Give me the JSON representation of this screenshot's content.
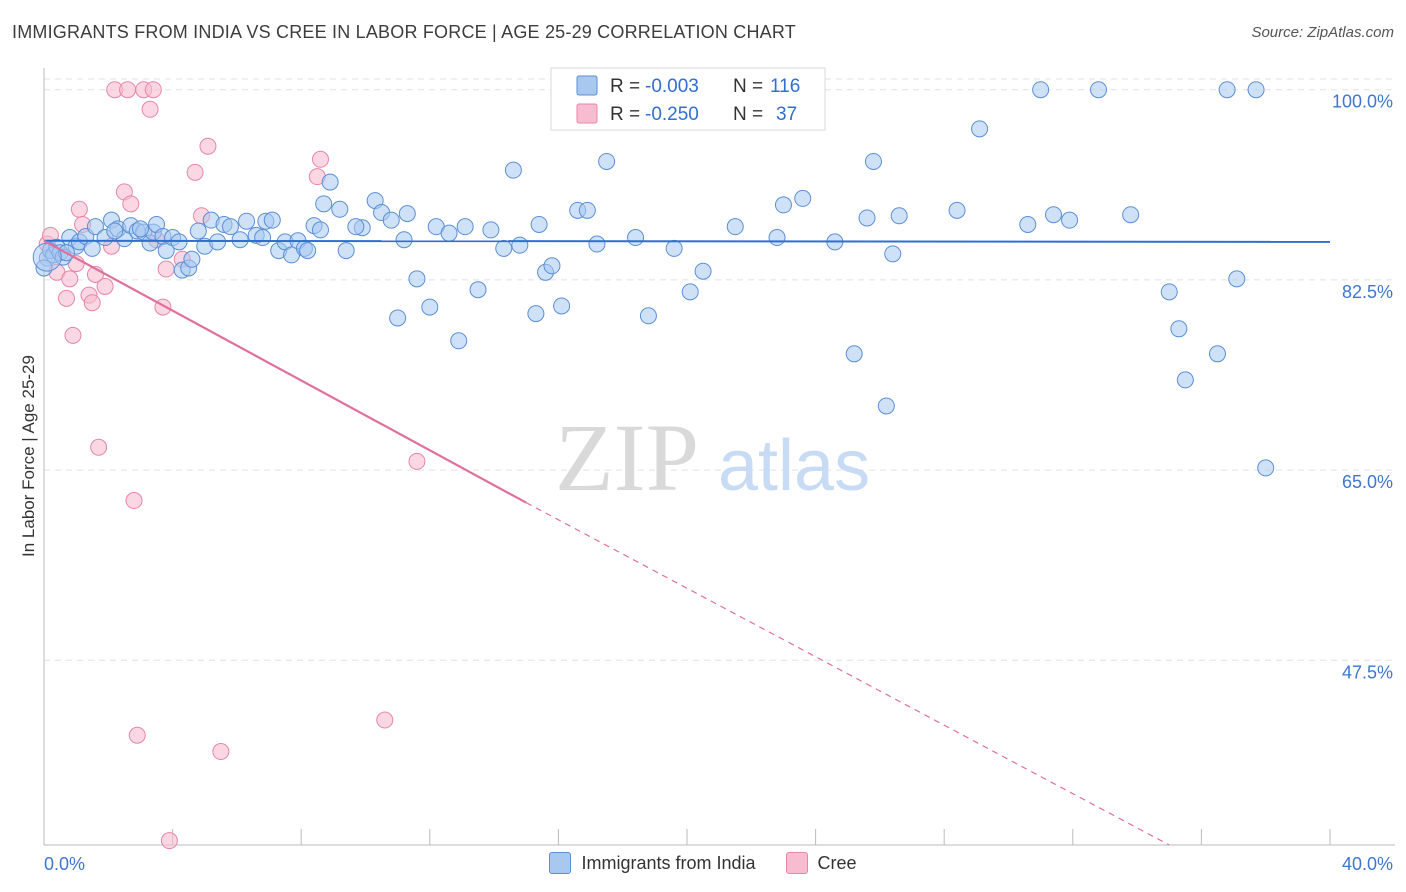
{
  "title": "IMMIGRANTS FROM INDIA VS CREE IN LABOR FORCE | AGE 25-29 CORRELATION CHART",
  "source": "Source: ZipAtlas.com",
  "watermark": {
    "zip": "ZIP",
    "atlas": "atlas"
  },
  "colors": {
    "india_fill": "#a8c8f0",
    "india_stroke": "#5b8fd6",
    "india_line": "#2f6fd0",
    "cree_fill": "#f7bcd0",
    "cree_stroke": "#e886a8",
    "cree_line": "#e0709a",
    "axis_text": "#3f76d0",
    "grid": "#e2e2e2"
  },
  "legend_box": {
    "rows": [
      {
        "r_label": "R =",
        "r_value": "-0.003",
        "n_label": "N =",
        "n_value": "116"
      },
      {
        "r_label": "R =",
        "r_value": "-0.250",
        "n_label": "N =",
        "n_value": "37"
      }
    ]
  },
  "chart_data": {
    "type": "scatter",
    "ylabel": "In Labor Force | Age 25-29",
    "x_tick_labels": [
      "0.0%",
      "40.0%"
    ],
    "y_tick_labels": [
      "100.0%",
      "82.5%",
      "65.0%",
      "47.5%"
    ],
    "xlim": [
      0,
      40
    ],
    "ylim": [
      30.5,
      102
    ],
    "y_ticks": [
      100,
      82.5,
      65,
      47.5
    ],
    "grid": true,
    "legend_position": "top-center",
    "series": [
      {
        "name": "Immigrants from India",
        "trend": {
          "x0": 0,
          "y0": 86.1,
          "x1": 40,
          "y1": 86.0
        },
        "points": [
          [
            0.1,
            84.5
          ],
          [
            0.2,
            85.2
          ],
          [
            0.3,
            84.8
          ],
          [
            0.4,
            85.5
          ],
          [
            0.5,
            85.0
          ],
          [
            0.6,
            84.6
          ],
          [
            0.8,
            86.4
          ],
          [
            1.0,
            85.6
          ],
          [
            1.1,
            86.0
          ],
          [
            1.3,
            86.5
          ],
          [
            1.5,
            85.4
          ],
          [
            1.6,
            87.4
          ],
          [
            1.9,
            86.4
          ],
          [
            2.1,
            88.0
          ],
          [
            2.3,
            87.2
          ],
          [
            2.5,
            86.3
          ],
          [
            2.7,
            87.5
          ],
          [
            2.9,
            87.0
          ],
          [
            3.1,
            86.9
          ],
          [
            3.3,
            85.9
          ],
          [
            3.4,
            86.9
          ],
          [
            3.5,
            87.6
          ],
          [
            3.7,
            86.5
          ],
          [
            3.8,
            85.2
          ],
          [
            4.0,
            86.4
          ],
          [
            4.2,
            86.0
          ],
          [
            4.3,
            83.4
          ],
          [
            4.5,
            83.6
          ],
          [
            4.6,
            84.4
          ],
          [
            4.8,
            87.0
          ],
          [
            5.0,
            85.6
          ],
          [
            5.2,
            88.0
          ],
          [
            5.4,
            86.0
          ],
          [
            5.6,
            87.6
          ],
          [
            5.8,
            87.4
          ],
          [
            6.1,
            86.2
          ],
          [
            6.3,
            87.9
          ],
          [
            6.6,
            86.6
          ],
          [
            6.9,
            87.9
          ],
          [
            7.1,
            88.0
          ],
          [
            7.3,
            85.2
          ],
          [
            7.5,
            86.0
          ],
          [
            7.7,
            84.8
          ],
          [
            7.9,
            86.1
          ],
          [
            8.1,
            85.4
          ],
          [
            8.2,
            85.2
          ],
          [
            8.4,
            87.5
          ],
          [
            8.6,
            87.1
          ],
          [
            8.7,
            89.5
          ],
          [
            8.9,
            91.5
          ],
          [
            9.2,
            89.0
          ],
          [
            9.4,
            85.2
          ],
          [
            9.9,
            87.3
          ],
          [
            10.3,
            89.8
          ],
          [
            10.5,
            88.7
          ],
          [
            10.8,
            88.0
          ],
          [
            11.0,
            79.0
          ],
          [
            11.2,
            86.2
          ],
          [
            11.3,
            88.6
          ],
          [
            11.6,
            82.6
          ],
          [
            12.0,
            80.0
          ],
          [
            12.2,
            87.4
          ],
          [
            12.6,
            86.8
          ],
          [
            12.9,
            76.9
          ],
          [
            13.1,
            87.4
          ],
          [
            13.5,
            81.6
          ],
          [
            13.9,
            87.1
          ],
          [
            14.3,
            85.4
          ],
          [
            14.6,
            92.6
          ],
          [
            14.8,
            85.7
          ],
          [
            15.4,
            87.6
          ],
          [
            15.3,
            79.4
          ],
          [
            15.6,
            83.2
          ],
          [
            15.8,
            83.8
          ],
          [
            16.1,
            80.1
          ],
          [
            16.6,
            88.9
          ],
          [
            16.9,
            88.9
          ],
          [
            17.2,
            85.8
          ],
          [
            17.5,
            93.4
          ],
          [
            18.4,
            86.4
          ],
          [
            18.8,
            79.2
          ],
          [
            19.6,
            85.4
          ],
          [
            20.1,
            81.4
          ],
          [
            20.5,
            83.3
          ],
          [
            21.5,
            87.4
          ],
          [
            22.8,
            86.4
          ],
          [
            23.0,
            89.4
          ],
          [
            23.6,
            90.0
          ],
          [
            24.6,
            86.0
          ],
          [
            25.2,
            75.7
          ],
          [
            25.6,
            88.2
          ],
          [
            25.8,
            93.4
          ],
          [
            26.2,
            70.9
          ],
          [
            26.4,
            84.9
          ],
          [
            26.6,
            88.4
          ],
          [
            28.4,
            88.9
          ],
          [
            29.1,
            96.4
          ],
          [
            30.6,
            87.6
          ],
          [
            31.0,
            100.0
          ],
          [
            31.4,
            88.5
          ],
          [
            31.9,
            88.0
          ],
          [
            32.8,
            100.0
          ],
          [
            33.8,
            88.5
          ],
          [
            35.0,
            81.4
          ],
          [
            35.3,
            78.0
          ],
          [
            35.5,
            73.3
          ],
          [
            36.5,
            75.7
          ],
          [
            36.8,
            100.0
          ],
          [
            37.1,
            82.6
          ],
          [
            37.7,
            100.0
          ],
          [
            38.0,
            65.2
          ],
          [
            0.0,
            83.6
          ],
          [
            0.7,
            85.0
          ],
          [
            2.2,
            87.0
          ],
          [
            3.0,
            87.2
          ],
          [
            6.8,
            86.4
          ],
          [
            9.7,
            87.4
          ]
        ]
      },
      {
        "name": "Cree",
        "trend": {
          "x0": 0,
          "y0": 86.1,
          "x1": 15,
          "y1": 62.0
        },
        "trend_dash_end": {
          "x": 35,
          "y": 30.5
        },
        "points": [
          [
            0.1,
            85.8
          ],
          [
            0.2,
            86.6
          ],
          [
            0.4,
            83.2
          ],
          [
            0.7,
            80.8
          ],
          [
            0.8,
            82.6
          ],
          [
            0.9,
            77.4
          ],
          [
            1.1,
            89.0
          ],
          [
            1.2,
            87.6
          ],
          [
            1.4,
            81.1
          ],
          [
            1.5,
            80.4
          ],
          [
            1.6,
            83.0
          ],
          [
            1.7,
            67.1
          ],
          [
            1.9,
            81.9
          ],
          [
            2.1,
            85.6
          ],
          [
            2.2,
            100.0
          ],
          [
            2.5,
            90.6
          ],
          [
            2.6,
            100.0
          ],
          [
            2.7,
            89.5
          ],
          [
            2.8,
            62.2
          ],
          [
            2.9,
            40.6
          ],
          [
            3.1,
            100.0
          ],
          [
            3.3,
            98.2
          ],
          [
            3.4,
            100.0
          ],
          [
            3.5,
            86.2
          ],
          [
            3.7,
            80.0
          ],
          [
            3.8,
            83.5
          ],
          [
            3.9,
            30.9
          ],
          [
            4.3,
            84.4
          ],
          [
            4.7,
            92.4
          ],
          [
            4.9,
            88.4
          ],
          [
            5.1,
            94.8
          ],
          [
            5.5,
            39.1
          ],
          [
            8.5,
            92.0
          ],
          [
            8.6,
            93.6
          ],
          [
            10.6,
            42.0
          ],
          [
            11.6,
            65.8
          ],
          [
            1.0,
            84.0
          ]
        ]
      }
    ]
  }
}
